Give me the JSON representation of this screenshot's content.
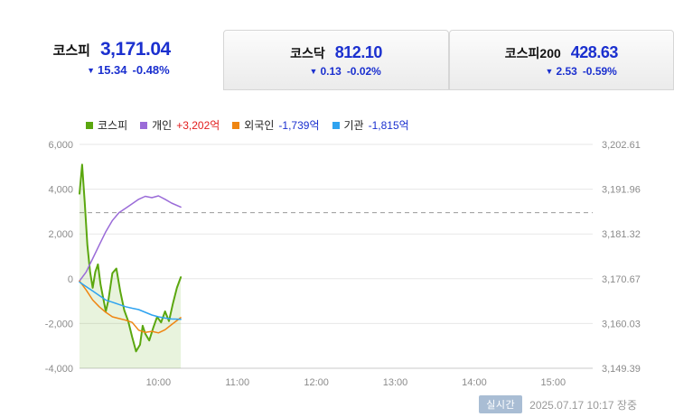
{
  "colors": {
    "down": "#1b30cf",
    "up": "#e21d1d",
    "kospi_line": "#5ba70f",
    "individual_line": "#9a6bd8",
    "foreigner_line": "#ef8511",
    "institution_line": "#2fa3f0",
    "badge_bg": "#a9bdd4"
  },
  "tabs": [
    {
      "name": "코스피",
      "value": "3,171.04",
      "arrow": "▼",
      "change": "15.34",
      "percent": "-0.48%"
    },
    {
      "name": "코스닥",
      "value": "812.10",
      "arrow": "▼",
      "change": "0.13",
      "percent": "-0.02%"
    },
    {
      "name": "코스피200",
      "value": "428.63",
      "arrow": "▼",
      "change": "2.53",
      "percent": "-0.59%"
    }
  ],
  "legend": {
    "items": [
      {
        "label": "코스피",
        "swatch": "#5ba70f",
        "value": "",
        "value_color": ""
      },
      {
        "label": "개인",
        "swatch": "#9a6bd8",
        "value": "+3,202억",
        "value_color": "#e21d1d"
      },
      {
        "label": "외국인",
        "swatch": "#ef8511",
        "value": "-1,739억",
        "value_color": "#1b30cf"
      },
      {
        "label": "기관",
        "swatch": "#2fa3f0",
        "value": "-1,815억",
        "value_color": "#1b30cf"
      }
    ]
  },
  "footer": {
    "badge": "실시간",
    "datetime": "2025.07.17 10:17 장중"
  },
  "chart_data": {
    "type": "line",
    "x_axis": {
      "start": "09:00",
      "end": "15:30",
      "ticks": [
        "10:00",
        "11:00",
        "12:00",
        "13:00",
        "14:00",
        "15:00"
      ]
    },
    "y_left": {
      "min": -4000,
      "max": 6000,
      "ticks": [
        -4000,
        -2000,
        0,
        2000,
        4000,
        6000
      ],
      "labels": [
        "-4,000",
        "-2,000",
        "0",
        "2,000",
        "4,000",
        "6,000"
      ]
    },
    "y_right": {
      "min": 3149.39,
      "max": 3202.61,
      "labels": [
        "3,149.39",
        "3,160.03",
        "3,170.67",
        "3,181.32",
        "3,191.96",
        "3,202.61"
      ]
    },
    "reference_line": {
      "axis": "right",
      "value": 3186.38,
      "style": "dashed"
    },
    "series": [
      {
        "name": "코스피",
        "axis": "right",
        "color": "#5ba70f",
        "width": 2,
        "area": true,
        "points": [
          [
            "09:00",
            3190.9
          ],
          [
            "09:02",
            3197.8
          ],
          [
            "09:04",
            3188.8
          ],
          [
            "09:06",
            3178.7
          ],
          [
            "09:08",
            3172.3
          ],
          [
            "09:10",
            3168.5
          ],
          [
            "09:12",
            3172.3
          ],
          [
            "09:14",
            3174.1
          ],
          [
            "09:16",
            3169.3
          ],
          [
            "09:18",
            3166.1
          ],
          [
            "09:20",
            3162.9
          ],
          [
            "09:22",
            3165.6
          ],
          [
            "09:25",
            3172.0
          ],
          [
            "09:28",
            3173.1
          ],
          [
            "09:31",
            3167.7
          ],
          [
            "09:34",
            3163.2
          ],
          [
            "09:37",
            3160.6
          ],
          [
            "09:40",
            3156.8
          ],
          [
            "09:43",
            3153.4
          ],
          [
            "09:46",
            3155.0
          ],
          [
            "09:48",
            3159.5
          ],
          [
            "09:50",
            3157.6
          ],
          [
            "09:53",
            3156.0
          ],
          [
            "09:56",
            3159.0
          ],
          [
            "09:59",
            3161.6
          ],
          [
            "10:02",
            3160.3
          ],
          [
            "10:05",
            3162.9
          ],
          [
            "10:08",
            3160.6
          ],
          [
            "10:11",
            3164.8
          ],
          [
            "10:14",
            3168.5
          ],
          [
            "10:17",
            3171.04
          ]
        ]
      },
      {
        "name": "개인",
        "axis": "left",
        "color": "#9a6bd8",
        "width": 1.5,
        "area": false,
        "final_value": "+3,202억",
        "points": [
          [
            "09:00",
            -100
          ],
          [
            "09:05",
            300
          ],
          [
            "09:10",
            900
          ],
          [
            "09:15",
            1500
          ],
          [
            "09:20",
            2100
          ],
          [
            "09:25",
            2600
          ],
          [
            "09:30",
            2950
          ],
          [
            "09:35",
            3150
          ],
          [
            "09:40",
            3350
          ],
          [
            "09:45",
            3550
          ],
          [
            "09:50",
            3680
          ],
          [
            "09:55",
            3620
          ],
          [
            "10:00",
            3700
          ],
          [
            "10:05",
            3550
          ],
          [
            "10:10",
            3380
          ],
          [
            "10:17",
            3202
          ]
        ]
      },
      {
        "name": "외국인",
        "axis": "left",
        "color": "#ef8511",
        "width": 1.5,
        "area": false,
        "final_value": "-1,739억",
        "points": [
          [
            "09:00",
            -100
          ],
          [
            "09:05",
            -500
          ],
          [
            "09:10",
            -950
          ],
          [
            "09:15",
            -1250
          ],
          [
            "09:20",
            -1500
          ],
          [
            "09:25",
            -1700
          ],
          [
            "09:30",
            -1780
          ],
          [
            "09:35",
            -1850
          ],
          [
            "09:40",
            -1950
          ],
          [
            "09:45",
            -2300
          ],
          [
            "09:50",
            -2400
          ],
          [
            "09:55",
            -2350
          ],
          [
            "10:00",
            -2420
          ],
          [
            "10:05",
            -2280
          ],
          [
            "10:10",
            -2050
          ],
          [
            "10:17",
            -1739
          ]
        ]
      },
      {
        "name": "기관",
        "axis": "left",
        "color": "#2fa3f0",
        "width": 1.5,
        "area": false,
        "final_value": "-1,815억",
        "points": [
          [
            "09:00",
            -150
          ],
          [
            "09:05",
            -350
          ],
          [
            "09:10",
            -550
          ],
          [
            "09:15",
            -750
          ],
          [
            "09:20",
            -950
          ],
          [
            "09:25",
            -1050
          ],
          [
            "09:30",
            -1150
          ],
          [
            "09:35",
            -1250
          ],
          [
            "09:40",
            -1320
          ],
          [
            "09:45",
            -1380
          ],
          [
            "09:50",
            -1500
          ],
          [
            "09:55",
            -1620
          ],
          [
            "10:00",
            -1700
          ],
          [
            "10:05",
            -1760
          ],
          [
            "10:10",
            -1800
          ],
          [
            "10:17",
            -1815
          ]
        ]
      }
    ]
  }
}
